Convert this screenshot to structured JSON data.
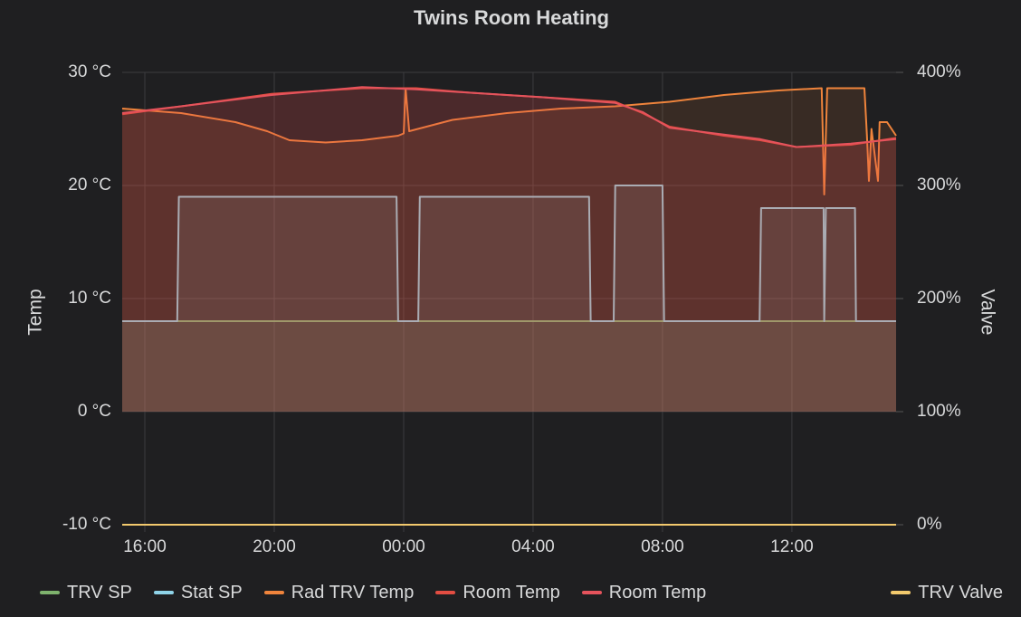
{
  "chart_data": {
    "type": "line",
    "title": "Twins Room Heating",
    "y_label": "Temp",
    "y2_label": "Valve",
    "xlim": [
      15.3,
      39.22
    ],
    "xticks": [
      {
        "value": 16,
        "label": "16:00"
      },
      {
        "value": 20,
        "label": "20:00"
      },
      {
        "value": 24,
        "label": "00:00"
      },
      {
        "value": 28,
        "label": "04:00"
      },
      {
        "value": 32,
        "label": "08:00"
      },
      {
        "value": 36,
        "label": "12:00"
      }
    ],
    "ylim": [
      -10,
      30
    ],
    "yticks": [
      {
        "value": -10,
        "label": "-10 °C"
      },
      {
        "value": 0,
        "label": "0 °C"
      },
      {
        "value": 10,
        "label": "10 °C"
      },
      {
        "value": 20,
        "label": "20 °C"
      },
      {
        "value": 30,
        "label": "30 °C"
      }
    ],
    "y2lim": [
      0,
      400
    ],
    "y2ticks": [
      {
        "value": 0,
        "label": "0%"
      },
      {
        "value": 100,
        "label": "100%"
      },
      {
        "value": 200,
        "label": "200%"
      },
      {
        "value": 300,
        "label": "300%"
      },
      {
        "value": 400,
        "label": "400%"
      }
    ],
    "grid": true,
    "series": [
      {
        "name": "TRV SP",
        "color": "#7eb26d",
        "fill": true,
        "x": [
          15.3,
          39.22
        ],
        "values": [
          8,
          8
        ]
      },
      {
        "name": "Stat SP",
        "color": "#8fd3e8",
        "fill": true,
        "x": [
          15.3,
          17.0,
          17.05,
          23.78,
          23.83,
          24.45,
          24.5,
          29.73,
          29.78,
          30.49,
          30.54,
          32.0,
          32.05,
          35.0,
          35.05,
          36.98,
          37.0,
          37.05,
          37.08,
          37.95,
          37.98,
          39.22
        ],
        "values": [
          8,
          8,
          19,
          19,
          8,
          8,
          19,
          19,
          8,
          8,
          20,
          20,
          8,
          8,
          18,
          18,
          8,
          18,
          18,
          18,
          8,
          8
        ]
      },
      {
        "name": "Rad TRV Temp",
        "color": "#ef843c",
        "fill": true,
        "x": [
          15.3,
          17.12,
          18.8,
          19.78,
          20.47,
          21.59,
          22.71,
          23.83,
          24.0,
          24.06,
          24.17,
          25.51,
          27.19,
          28.87,
          30.54,
          32.22,
          33.9,
          35.58,
          36.92,
          37.0,
          37.09,
          38.24,
          38.32,
          38.38,
          38.46,
          38.66,
          38.71,
          38.94,
          39.22
        ],
        "values": [
          26.8,
          26.4,
          25.6,
          24.8,
          24.0,
          23.8,
          24.0,
          24.4,
          24.6,
          28.6,
          24.8,
          25.8,
          26.4,
          26.8,
          27.0,
          27.4,
          28.0,
          28.4,
          28.6,
          19.2,
          28.6,
          28.6,
          24.4,
          20.4,
          25.0,
          20.4,
          25.6,
          25.6,
          24.4
        ]
      },
      {
        "name": "Room Temp",
        "color": "#e24d42",
        "fill": true,
        "x": [
          15.3,
          17.12,
          19.92,
          22.71,
          24.39,
          26.07,
          28.31,
          30.54,
          31.38,
          32.22,
          33.9,
          35.02,
          36.14,
          37.82,
          39.22
        ],
        "values": [
          26.3,
          27.0,
          28.1,
          28.6,
          28.6,
          28.2,
          27.8,
          27.4,
          26.4,
          25.2,
          24.4,
          24.0,
          23.4,
          23.6,
          24.2
        ]
      },
      {
        "name": "Room Temp",
        "color": "#e5535c",
        "fill": true,
        "x": [
          15.3,
          17.12,
          19.92,
          22.71,
          24.39,
          26.07,
          28.31,
          30.54,
          31.38,
          32.22,
          33.9,
          35.02,
          36.14,
          37.82,
          39.22
        ],
        "values": [
          26.4,
          27.0,
          28.0,
          28.7,
          28.5,
          28.2,
          27.8,
          27.3,
          26.5,
          25.1,
          24.5,
          24.1,
          23.4,
          23.7,
          24.1
        ]
      },
      {
        "name": "TRV Valve",
        "color": "#f2c96d",
        "axis": "y2",
        "x": [
          15.3,
          39.22
        ],
        "values": [
          0,
          0
        ]
      }
    ]
  }
}
